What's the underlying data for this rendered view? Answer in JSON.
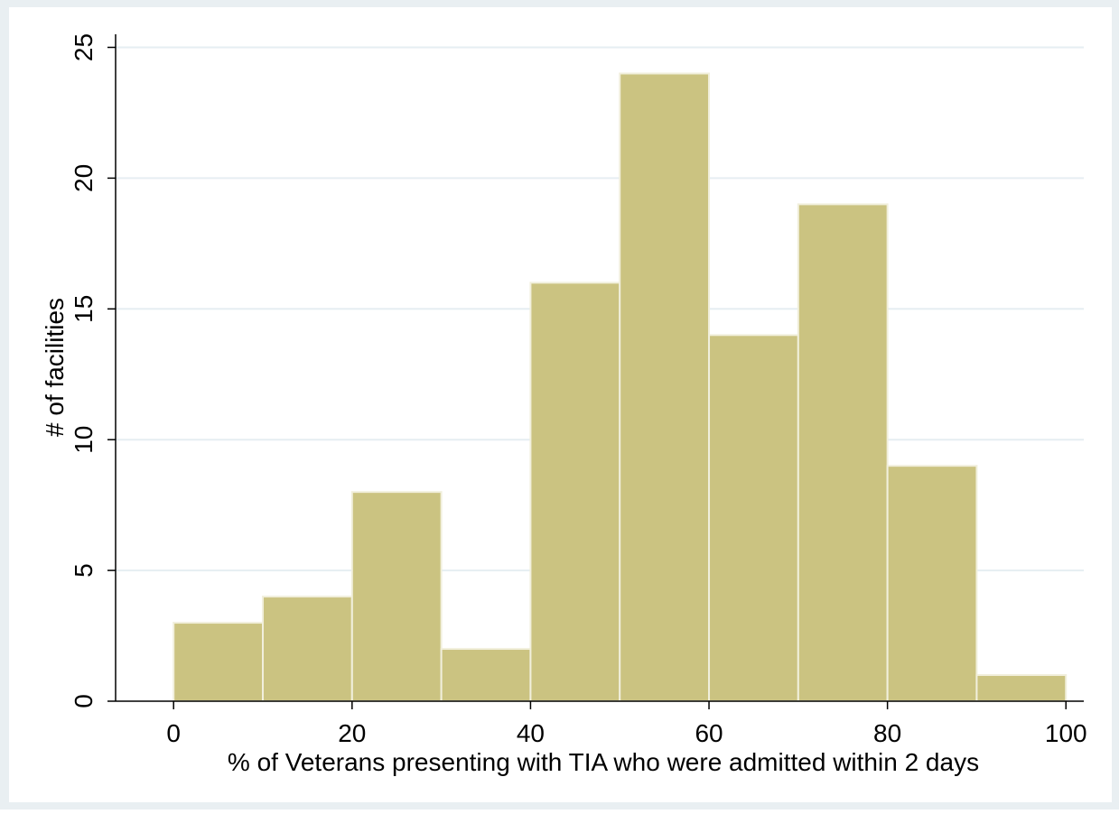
{
  "chart_data": {
    "type": "bar",
    "title": "",
    "xlabel": "% of Veterans presenting with TIA who were admitted within 2 days",
    "ylabel": "# of facilities",
    "xlim": [
      -6.5,
      102
    ],
    "ylim": [
      0,
      25.5
    ],
    "x_ticks": [
      0,
      20,
      40,
      60,
      80,
      100
    ],
    "x_tick_labels": [
      "0",
      "20",
      "40",
      "60",
      "80",
      "100"
    ],
    "y_ticks": [
      0,
      5,
      10,
      15,
      20,
      25
    ],
    "y_tick_labels": [
      "0",
      "5",
      "10",
      "15",
      "20",
      "25"
    ],
    "bins": [
      {
        "start": 0,
        "end": 10,
        "count": 3
      },
      {
        "start": 10,
        "end": 20,
        "count": 4
      },
      {
        "start": 20,
        "end": 30,
        "count": 8
      },
      {
        "start": 30,
        "end": 40,
        "count": 2
      },
      {
        "start": 40,
        "end": 50,
        "count": 16
      },
      {
        "start": 50,
        "end": 60,
        "count": 24
      },
      {
        "start": 60,
        "end": 70,
        "count": 14
      },
      {
        "start": 70,
        "end": 80,
        "count": 19
      },
      {
        "start": 80,
        "end": 90,
        "count": 9
      },
      {
        "start": 90,
        "end": 100,
        "count": 1
      }
    ],
    "grid": true,
    "colors": {
      "outer_background": "#e9eff2",
      "plot_background": "#ffffff",
      "bar_fill": "#cbc381",
      "bar_edge": "#f1efdc",
      "gridline": "#e6eef2",
      "axis": "#000000",
      "text": "#000000"
    }
  }
}
